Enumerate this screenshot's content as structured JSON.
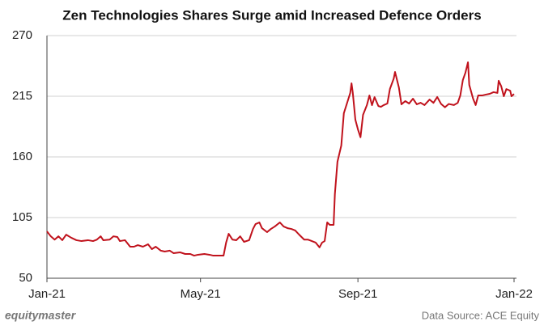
{
  "chart_data": {
    "type": "line",
    "title": "Zen Technologies Shares Surge amid Increased Defence Orders",
    "brand": "equitymaster",
    "source": "Data Source: ACE Equity",
    "x": [
      0,
      3,
      6,
      9,
      12,
      15,
      19,
      23,
      27,
      32,
      36,
      39,
      42,
      44,
      49,
      52,
      55,
      57,
      61,
      65,
      68,
      71,
      75,
      79,
      82,
      85,
      89,
      92,
      96,
      99,
      104,
      108,
      112,
      115,
      118,
      123,
      127,
      130,
      134,
      138,
      140,
      142,
      145,
      148,
      151,
      154,
      158,
      161,
      163,
      166,
      168,
      172,
      175,
      178,
      182,
      185,
      188,
      191,
      194,
      197,
      201,
      204,
      207,
      210,
      213,
      215,
      217,
      219,
      221,
      224,
      225,
      227,
      230,
      232,
      235,
      237,
      238,
      239,
      241,
      243,
      245,
      247,
      250,
      252,
      254,
      256,
      259,
      261,
      263,
      266,
      268,
      271,
      272,
      275,
      277,
      280,
      283,
      286,
      289,
      292,
      295,
      299,
      302,
      305,
      308,
      311,
      314,
      318,
      321,
      323,
      325,
      327,
      329,
      330,
      333,
      335,
      337,
      340,
      343,
      346,
      349,
      352,
      353,
      355,
      357,
      359,
      362,
      363,
      365
    ],
    "series": [
      {
        "name": "Zen Technologies",
        "color": "#c0121c",
        "values": [
          92.5,
          88,
          85,
          88,
          84.5,
          89.5,
          86.7,
          84.5,
          83.7,
          84.5,
          83.7,
          85,
          88,
          84.5,
          85,
          88,
          87.4,
          83.7,
          84.5,
          78.6,
          78.6,
          80,
          78.6,
          80.8,
          76.4,
          78.6,
          75,
          74.2,
          75,
          72.7,
          73.5,
          72,
          72,
          70.5,
          71.3,
          72,
          71.3,
          70.5,
          70.5,
          70.5,
          82.3,
          90.3,
          85,
          84.5,
          88,
          83,
          84.5,
          94.7,
          99.1,
          100.6,
          95.4,
          91.8,
          94.7,
          96.9,
          100.6,
          96.9,
          95.4,
          94.7,
          93.3,
          89.6,
          85,
          85,
          83.7,
          82.3,
          78,
          82.3,
          83.7,
          100.6,
          98.4,
          98.4,
          126.3,
          155.6,
          170.3,
          199.6,
          210.6,
          218,
          226.7,
          218,
          193.7,
          185,
          177.8,
          198.1,
          206.9,
          215.7,
          206.9,
          214.2,
          206.1,
          205.4,
          206.9,
          208.4,
          221.6,
          231.1,
          237,
          223,
          207.7,
          210.6,
          208.4,
          212.8,
          207.7,
          209.1,
          207,
          212,
          209,
          214.3,
          208,
          205,
          208,
          207,
          209,
          215.7,
          229.7,
          236.3,
          245.8,
          225.3,
          212.8,
          207,
          215.7,
          215.7,
          216.5,
          217.2,
          218.7,
          218,
          229,
          224,
          215,
          221.5,
          220,
          215,
          217
        ]
      }
    ],
    "xlim": [
      0,
      365
    ],
    "xticks": [
      {
        "value": 0,
        "label": "Jan-21"
      },
      {
        "value": 120,
        "label": "May-21"
      },
      {
        "value": 243,
        "label": "Sep-21"
      },
      {
        "value": 365,
        "label": "Jan-22"
      }
    ],
    "ylim": [
      50,
      270
    ],
    "yticks": [
      50,
      105,
      160,
      215,
      270
    ],
    "grid": true
  }
}
